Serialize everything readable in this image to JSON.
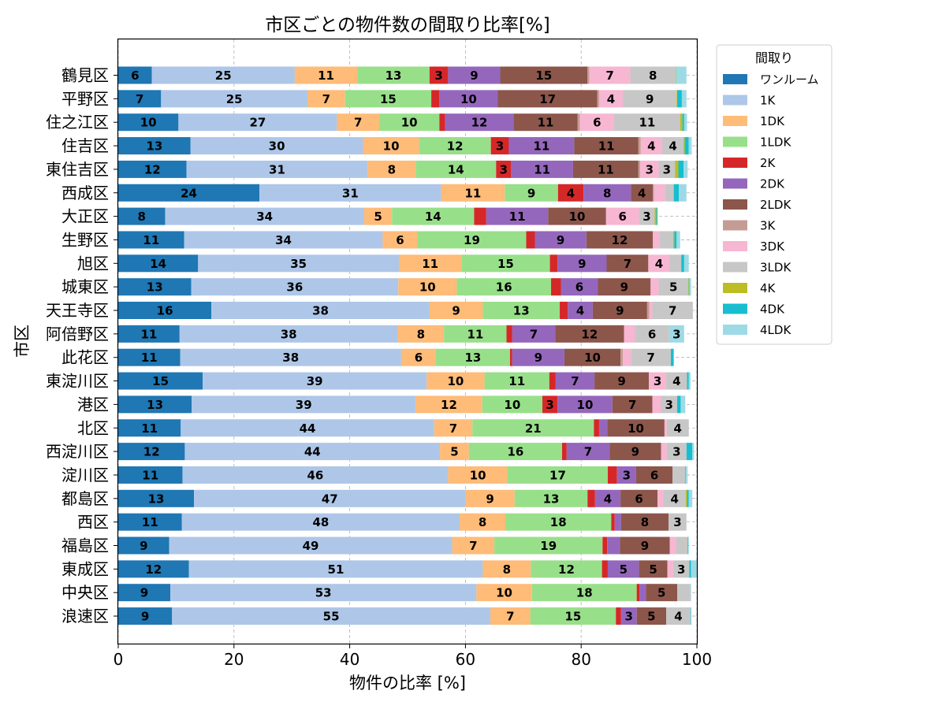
{
  "chart_data": {
    "type": "bar",
    "orientation": "horizontal",
    "stacked": true,
    "title": "市区ごとの物件数の間取り比率[%]",
    "xlabel": "物件の比率 [%]",
    "ylabel": "市区",
    "xlim": [
      0,
      100
    ],
    "xticks": [
      0,
      20,
      40,
      60,
      80,
      100
    ],
    "grid": true,
    "legend_title": "間取り",
    "legend_position": "right",
    "categories": [
      "鶴見区",
      "平野区",
      "住之江区",
      "住吉区",
      "東住吉区",
      "西成区",
      "大正区",
      "生野区",
      "旭区",
      "城東区",
      "天王寺区",
      "阿倍野区",
      "此花区",
      "東淀川区",
      "港区",
      "北区",
      "西淀川区",
      "淀川区",
      "都島区",
      "西区",
      "福島区",
      "東成区",
      "中央区",
      "浪速区"
    ],
    "series": [
      {
        "name": "ワンルーム",
        "color": "#1f77b4",
        "values": [
          5.8,
          7.4,
          10.4,
          12.5,
          11.8,
          24.4,
          8.1,
          11.4,
          13.8,
          12.6,
          16.1,
          10.6,
          10.7,
          14.6,
          12.7,
          10.8,
          11.5,
          11.1,
          13.1,
          11.0,
          8.8,
          12.2,
          9.0,
          9.3
        ]
      },
      {
        "name": "1K",
        "color": "#aec7e8",
        "values": [
          24.7,
          25.3,
          27.4,
          29.8,
          31.3,
          31.4,
          34.4,
          34.3,
          34.7,
          35.8,
          37.7,
          37.7,
          38.2,
          38.7,
          38.7,
          43.8,
          44.1,
          45.9,
          46.9,
          48.0,
          48.9,
          50.8,
          52.9,
          55.0
        ]
      },
      {
        "name": "1DK",
        "color": "#ffbb78",
        "values": [
          10.8,
          6.5,
          7.3,
          9.7,
          8.3,
          11.0,
          4.8,
          6.0,
          10.8,
          10.1,
          9.2,
          8.0,
          6.0,
          10.0,
          11.5,
          6.6,
          5.0,
          10.3,
          8.5,
          7.9,
          7.3,
          8.3,
          9.6,
          6.9
        ]
      },
      {
        "name": "1LDK",
        "color": "#98df8a",
        "values": [
          12.5,
          14.9,
          10.4,
          12.4,
          13.9,
          9.2,
          14.2,
          18.8,
          15.3,
          16.3,
          13.3,
          10.8,
          12.8,
          11.2,
          10.4,
          21.0,
          16.1,
          17.3,
          12.6,
          18.3,
          18.7,
          12.3,
          18.1,
          14.8
        ]
      },
      {
        "name": "2K",
        "color": "#d62728",
        "values": [
          3.2,
          1.4,
          1.0,
          3.1,
          2.6,
          4.4,
          2.1,
          1.5,
          1.3,
          1.7,
          1.4,
          1.0,
          0.4,
          1.1,
          2.6,
          0.9,
          0.8,
          1.6,
          1.3,
          0.6,
          0.8,
          1.0,
          0.5,
          0.9
        ]
      },
      {
        "name": "2DK",
        "color": "#9467bd",
        "values": [
          9.0,
          10.1,
          11.8,
          11.3,
          10.7,
          8.2,
          10.7,
          8.9,
          8.5,
          6.4,
          4.3,
          7.4,
          9.0,
          6.7,
          9.5,
          1.4,
          7.4,
          3.3,
          4.4,
          1.1,
          2.2,
          5.4,
          1.1,
          2.7
        ]
      },
      {
        "name": "2LDK",
        "color": "#8c564b",
        "values": [
          15.1,
          17.2,
          11.1,
          11.1,
          11.3,
          3.8,
          10.0,
          11.5,
          7.2,
          9.1,
          9.4,
          11.9,
          9.7,
          9.4,
          6.9,
          9.9,
          8.9,
          6.3,
          6.4,
          8.2,
          8.6,
          4.9,
          5.4,
          5.1
        ]
      },
      {
        "name": "3K",
        "color": "#c49c94",
        "values": [
          0.3,
          0.3,
          0.4,
          0.4,
          0.3,
          0.2,
          0.0,
          0.0,
          0.0,
          0.0,
          0.4,
          0.0,
          0.4,
          0.0,
          0.0,
          0.0,
          0.0,
          0.0,
          0.0,
          0.0,
          0.0,
          0.0,
          0.0,
          0.0
        ]
      },
      {
        "name": "3DK",
        "color": "#f7b6d2",
        "values": [
          7.1,
          4.1,
          5.9,
          3.7,
          3.2,
          1.9,
          5.7,
          1.1,
          3.7,
          1.4,
          0.5,
          1.9,
          1.4,
          3.0,
          1.5,
          0.4,
          1.0,
          0.0,
          1.0,
          0.0,
          1.1,
          1.0,
          0.0,
          0.0
        ]
      },
      {
        "name": "3LDK",
        "color": "#c7c7c7",
        "values": [
          7.8,
          9.3,
          11.4,
          3.7,
          2.8,
          1.5,
          2.7,
          2.4,
          2.0,
          5.1,
          7.0,
          5.9,
          6.9,
          3.6,
          2.8,
          3.8,
          3.4,
          2.2,
          3.9,
          3.1,
          2.0,
          2.8,
          2.3,
          4.2
        ]
      },
      {
        "name": "4K",
        "color": "#bcbd22",
        "values": [
          0.1,
          0.1,
          0.4,
          0.2,
          0.6,
          0.0,
          0.3,
          0.2,
          0.0,
          0.1,
          0.0,
          0.0,
          0.0,
          0.0,
          0.0,
          0.0,
          0.0,
          0.0,
          0.2,
          0.0,
          0.0,
          0.0,
          0.0,
          0.0
        ]
      },
      {
        "name": "4DK",
        "color": "#17becf",
        "values": [
          0.0,
          0.8,
          0.3,
          0.7,
          0.9,
          0.9,
          0.2,
          0.4,
          0.5,
          0.1,
          0.0,
          0.0,
          0.5,
          0.3,
          0.6,
          0.0,
          1.0,
          0.1,
          0.3,
          0.0,
          0.1,
          0.3,
          0.0,
          0.1
        ]
      },
      {
        "name": "4LDK",
        "color": "#9edae5",
        "values": [
          1.8,
          0.8,
          0.5,
          0.5,
          0.7,
          1.3,
          0.0,
          0.6,
          0.8,
          0.3,
          0.0,
          2.6,
          0.0,
          0.3,
          0.8,
          0.0,
          0.3,
          0.3,
          0.6,
          0.0,
          0.1,
          1.0,
          0.1,
          0.0
        ]
      }
    ]
  }
}
